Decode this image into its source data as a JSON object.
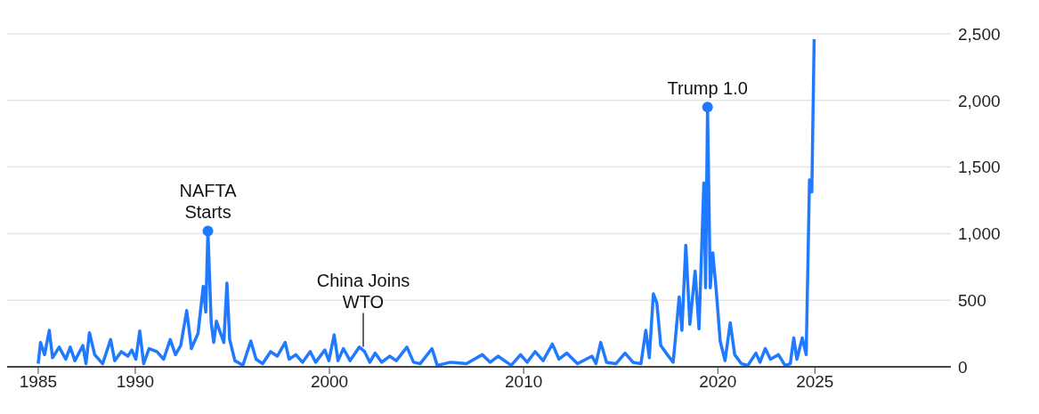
{
  "chart_data": {
    "type": "line",
    "x": [
      1985.0,
      1985.12,
      1985.33,
      1985.57,
      1985.74,
      1986.08,
      1986.42,
      1986.65,
      1986.89,
      1987.3,
      1987.46,
      1987.64,
      1987.91,
      1988.32,
      1988.73,
      1988.94,
      1989.28,
      1989.62,
      1989.82,
      1990.03,
      1990.23,
      1990.43,
      1990.71,
      1991.11,
      1991.46,
      1991.8,
      1992.07,
      1992.34,
      1992.65,
      1992.89,
      1993.23,
      1993.5,
      1993.63,
      1993.74,
      1993.91,
      1994.04,
      1994.18,
      1994.39,
      1994.56,
      1994.72,
      1994.86,
      1995.13,
      1995.54,
      1995.95,
      1996.22,
      1996.56,
      1996.97,
      1997.31,
      1997.72,
      1997.92,
      1998.27,
      1998.61,
      1999.01,
      1999.29,
      1999.76,
      1999.97,
      2000.24,
      2000.44,
      2000.72,
      2001.06,
      2001.54,
      2001.81,
      2002.08,
      2002.35,
      2002.69,
      2003.1,
      2003.44,
      2003.99,
      2004.33,
      2004.67,
      2005.28,
      2005.55,
      2006.23,
      2007.05,
      2007.87,
      2008.28,
      2008.68,
      2009.36,
      2009.84,
      2010.18,
      2010.59,
      2011.0,
      2011.48,
      2011.82,
      2012.22,
      2012.77,
      2013.52,
      2013.72,
      2013.97,
      2014.27,
      2014.75,
      2015.22,
      2015.63,
      2016.04,
      2016.29,
      2016.47,
      2016.68,
      2016.86,
      2017.06,
      2017.4,
      2017.7,
      2017.84,
      2018.01,
      2018.15,
      2018.35,
      2018.56,
      2018.83,
      2019.03,
      2019.28,
      2019.37,
      2019.47,
      2019.61,
      2019.74,
      2019.92,
      2020.12,
      2020.37,
      2020.64,
      2020.87,
      2021.21,
      2021.55,
      2021.96,
      2022.17,
      2022.44,
      2022.71,
      2023.12,
      2023.46,
      2023.73,
      2023.91,
      2024.07,
      2024.35,
      2024.55,
      2024.72,
      2024.84,
      2024.96
    ],
    "series": [
      {
        "color": "#1f7aff",
        "values": [
          23,
          183,
          91,
          274,
          68,
          148,
          57,
          148,
          46,
          160,
          23,
          256,
          91,
          23,
          205,
          46,
          114,
          80,
          126,
          57,
          269,
          23,
          137,
          114,
          57,
          205,
          91,
          160,
          422,
          137,
          251,
          605,
          411,
          1020,
          331,
          183,
          342,
          251,
          183,
          628,
          205,
          46,
          11,
          194,
          57,
          23,
          114,
          80,
          183,
          57,
          91,
          34,
          114,
          34,
          126,
          46,
          240,
          46,
          137,
          46,
          148,
          114,
          34,
          103,
          34,
          80,
          46,
          148,
          34,
          23,
          137,
          11,
          34,
          23,
          91,
          34,
          80,
          11,
          91,
          34,
          114,
          46,
          171,
          57,
          103,
          23,
          80,
          23,
          183,
          34,
          23,
          103,
          34,
          23,
          274,
          68,
          548,
          479,
          160,
          91,
          34,
          251,
          525,
          274,
          913,
          320,
          719,
          285,
          1381,
          594,
          1950,
          594,
          856,
          571,
          194,
          46,
          331,
          91,
          23,
          11,
          103,
          34,
          137,
          57,
          91,
          11,
          23,
          217,
          57,
          217,
          91,
          1404,
          1313,
          2460
        ]
      }
    ],
    "xlim": [
      1983.4,
      2032
    ],
    "xticks": [
      1985,
      1990,
      2000,
      2010,
      2020,
      2025
    ],
    "ylim": [
      0,
      2500
    ],
    "yticks": [
      0,
      500,
      {
        "value": 1000,
        "label": "1,000"
      },
      {
        "value": 1500,
        "label": "1,500"
      },
      {
        "value": 2000,
        "label": "2,000"
      },
      {
        "value": 2500,
        "label": "2,500"
      }
    ],
    "grid": "y",
    "legend": false,
    "marker": "none",
    "line_style": "solid",
    "annotations": [
      {
        "text": "NAFTA Starts",
        "x": 1993.74,
        "y": 1020
      },
      {
        "text": "China Joins WTO",
        "x": 2001.74,
        "y": 110
      },
      {
        "text": "Trump 1.0",
        "x": 2019.47,
        "y": 1950
      }
    ]
  }
}
